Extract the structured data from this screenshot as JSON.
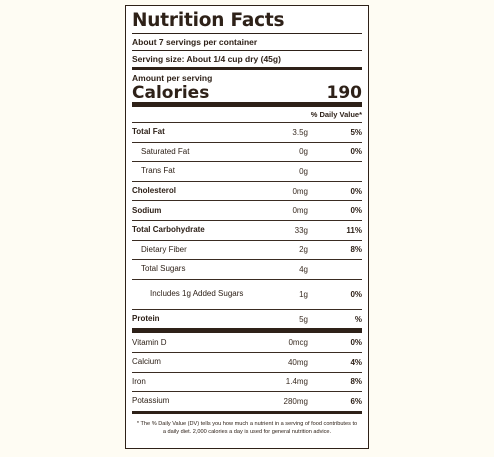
{
  "label": {
    "title": "Nutrition Facts",
    "servings_per_container": "About 7 servings per container",
    "serving_size": "Serving size: About 1/4 cup dry (45g)",
    "amount_per_serving": "Amount per serving",
    "calories_label": "Calories",
    "calories_value": "190",
    "daily_value_header": "% Daily Value*",
    "nutrients": [
      {
        "name": "Total Fat",
        "amount": "3.5g",
        "dv": "5%"
      },
      {
        "name": "Saturated Fat",
        "amount": "0g",
        "dv": "0%"
      },
      {
        "name": "Trans Fat",
        "amount": "0g",
        "dv": ""
      },
      {
        "name": "Cholesterol",
        "amount": "0mg",
        "dv": "0%"
      },
      {
        "name": "Sodium",
        "amount": "0mg",
        "dv": "0%"
      },
      {
        "name": "Total Carbohydrate",
        "amount": "33g",
        "dv": "11%"
      },
      {
        "name": "Dietary Fiber",
        "amount": "2g",
        "dv": "8%"
      },
      {
        "name": "Total Sugars",
        "amount": "4g",
        "dv": ""
      },
      {
        "name": "Includes 1g Added Sugars",
        "amount": "1g",
        "dv": "0%"
      },
      {
        "name": "Protein",
        "amount": "5g",
        "dv": "%"
      }
    ],
    "vitamins": [
      {
        "name": "Vitamin D",
        "amount": "0mcg",
        "dv": "0%"
      },
      {
        "name": "Calcium",
        "amount": "40mg",
        "dv": "4%"
      },
      {
        "name": "Iron",
        "amount": "1.4mg",
        "dv": "8%"
      },
      {
        "name": "Potassium",
        "amount": "280mg",
        "dv": "6%"
      }
    ],
    "footnote": "* The % Daily Value (DV) tells you how much a nutrient in a serving of food contributes to a daily diet. 2,000 calories a day is used for general nutrition advice."
  },
  "colors": {
    "ink": "#2e2118",
    "background": "#fefcf3"
  }
}
